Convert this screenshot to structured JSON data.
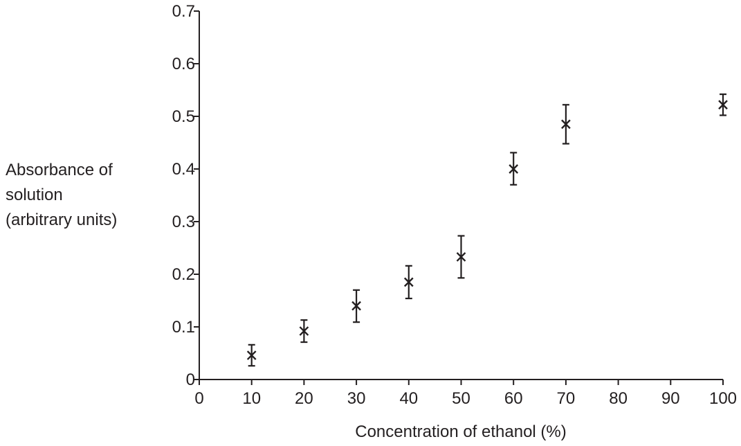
{
  "chart_data": {
    "type": "scatter",
    "title": "",
    "xlabel": "Concentration of ethanol (%)",
    "ylabel_lines": [
      "Absorbance of",
      "solution",
      "(arbitrary units)"
    ],
    "xlim": [
      0,
      100
    ],
    "ylim": [
      0,
      0.7
    ],
    "x_ticks": [
      0,
      10,
      20,
      30,
      40,
      50,
      60,
      70,
      80,
      90,
      100
    ],
    "x_tick_labels": [
      "0",
      "10",
      "20",
      "30",
      "40",
      "50",
      "60",
      "70",
      "80",
      "90",
      "100"
    ],
    "y_ticks": [
      0,
      0.1,
      0.2,
      0.3,
      0.4,
      0.5,
      0.6,
      0.7
    ],
    "y_tick_labels": [
      "0",
      "0.1",
      "0.2",
      "0.3",
      "0.4",
      "0.5",
      "0.6",
      "0.7"
    ],
    "grid": false,
    "marker": "x",
    "color": "#231f20",
    "points": [
      {
        "x": 10,
        "y": 0.046,
        "y_low": 0.026,
        "y_high": 0.066
      },
      {
        "x": 20,
        "y": 0.092,
        "y_low": 0.071,
        "y_high": 0.113
      },
      {
        "x": 30,
        "y": 0.14,
        "y_low": 0.109,
        "y_high": 0.17
      },
      {
        "x": 40,
        "y": 0.185,
        "y_low": 0.154,
        "y_high": 0.216
      },
      {
        "x": 50,
        "y": 0.233,
        "y_low": 0.193,
        "y_high": 0.273
      },
      {
        "x": 60,
        "y": 0.4,
        "y_low": 0.37,
        "y_high": 0.431
      },
      {
        "x": 70,
        "y": 0.485,
        "y_low": 0.448,
        "y_high": 0.522
      },
      {
        "x": 100,
        "y": 0.522,
        "y_low": 0.502,
        "y_high": 0.542
      }
    ]
  }
}
